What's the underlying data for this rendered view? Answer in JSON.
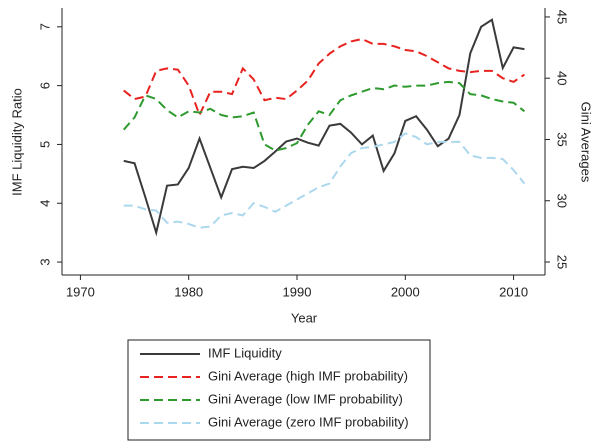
{
  "chart_data": {
    "type": "line",
    "x_label": "Year",
    "y_label": "IMF Liquidity Ratio",
    "y2_label": "Gini Averages",
    "x": [
      1974,
      1975,
      1976,
      1977,
      1978,
      1979,
      1980,
      1981,
      1982,
      1983,
      1984,
      1985,
      1986,
      1987,
      1988,
      1989,
      1990,
      1991,
      1992,
      1993,
      1994,
      1995,
      1996,
      1997,
      1998,
      1999,
      2000,
      2001,
      2002,
      2003,
      2004,
      2005,
      2006,
      2007,
      2008,
      2009,
      2010,
      2011
    ],
    "xlim": [
      1968.3,
      2012.9
    ],
    "xticks": [
      1970,
      1980,
      1990,
      2000,
      2010
    ],
    "ylim": [
      2.78,
      7.32
    ],
    "yticks": [
      3,
      4,
      5,
      6,
      7
    ],
    "y2lim": [
      23.94,
      45.73
    ],
    "y2ticks": [
      25,
      30,
      35,
      40,
      45
    ],
    "legend": "bottom",
    "series": [
      {
        "name": "IMF Liquidity",
        "color": "#3a3a3a",
        "dash": false,
        "axis": "y",
        "values": [
          4.72,
          4.68,
          4.1,
          3.5,
          4.3,
          4.32,
          4.6,
          5.1,
          4.6,
          4.1,
          4.58,
          4.62,
          4.6,
          4.72,
          4.88,
          5.05,
          5.1,
          5.03,
          4.98,
          5.32,
          5.35,
          5.2,
          5.0,
          5.15,
          4.55,
          4.85,
          5.4,
          5.48,
          5.25,
          4.97,
          5.1,
          5.5,
          6.55,
          7.0,
          7.12,
          6.3,
          6.65,
          6.62
        ]
      },
      {
        "name": "Gini Average (high IMF probability)",
        "color": "#e8231f",
        "dash": true,
        "axis": "y2",
        "values": [
          39,
          38.3,
          38.5,
          40.6,
          40.8,
          40.7,
          39.4,
          37,
          38.9,
          38.9,
          38.7,
          40.8,
          39.9,
          38.2,
          38.4,
          38.3,
          39,
          39.8,
          41.2,
          42,
          42.6,
          43,
          43.2,
          42.8,
          42.8,
          42.6,
          42.3,
          42.2,
          41.8,
          41.3,
          40.8,
          40.6,
          40.5,
          40.6,
          40.6,
          40.0,
          39.7,
          40.3
        ]
      },
      {
        "name": "Gini Average (low IMF probability)",
        "color": "#2e9a2e",
        "dash": true,
        "axis": "y2",
        "values": [
          35.8,
          36.8,
          38.6,
          38.3,
          37.4,
          36.8,
          37.3,
          37.2,
          37.5,
          37,
          36.8,
          36.9,
          37.2,
          34.6,
          34.1,
          34.3,
          34.7,
          36.2,
          37.3,
          37,
          38.2,
          38.6,
          38.9,
          39.2,
          39.1,
          39.4,
          39.3,
          39.4,
          39.4,
          39.6,
          39.7,
          39.6,
          38.7,
          38.6,
          38.3,
          38.1,
          38,
          37.3
        ]
      },
      {
        "name": "Gini Average (zero IMF probability)",
        "color": "#acd8ee",
        "dash": true,
        "axis": "y2",
        "values": [
          29.6,
          29.6,
          29.3,
          29.2,
          28.2,
          28.3,
          28.1,
          27.8,
          27.9,
          28.8,
          29,
          28.8,
          29.8,
          29.5,
          29.1,
          29.6,
          30.1,
          30.6,
          31.1,
          31.4,
          32.8,
          33.9,
          34.3,
          34.4,
          34.6,
          34.8,
          35.5,
          35.2,
          34.6,
          34.8,
          34.8,
          34.8,
          33.7,
          33.5,
          33.5,
          33.4,
          32.5,
          31.4
        ]
      }
    ]
  }
}
